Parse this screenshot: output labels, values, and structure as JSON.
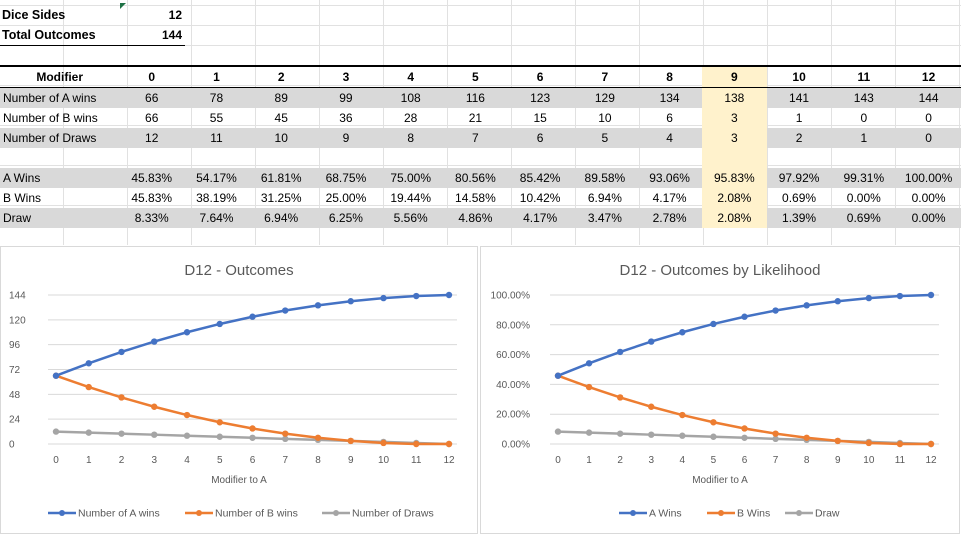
{
  "info": {
    "dice_sides_label": "Dice Sides",
    "dice_sides_value": "12",
    "total_outcomes_label": "Total Outcomes",
    "total_outcomes_value": "144"
  },
  "table": {
    "header_label": "Modifier",
    "modifiers": [
      "0",
      "1",
      "2",
      "3",
      "4",
      "5",
      "6",
      "7",
      "8",
      "9",
      "10",
      "11",
      "12"
    ],
    "highlight_col": 9,
    "rows": [
      {
        "label": "Number of A wins",
        "values": [
          "66",
          "78",
          "89",
          "99",
          "108",
          "116",
          "123",
          "129",
          "134",
          "138",
          "141",
          "143",
          "144"
        ]
      },
      {
        "label": "Number of B wins",
        "values": [
          "66",
          "55",
          "45",
          "36",
          "28",
          "21",
          "15",
          "10",
          "6",
          "3",
          "1",
          "0",
          "0"
        ]
      },
      {
        "label": "Number of Draws",
        "values": [
          "12",
          "11",
          "10",
          "9",
          "8",
          "7",
          "6",
          "5",
          "4",
          "3",
          "2",
          "1",
          "0"
        ]
      }
    ],
    "pct_rows": [
      {
        "label": "A Wins",
        "values": [
          "45.83%",
          "54.17%",
          "61.81%",
          "68.75%",
          "75.00%",
          "80.56%",
          "85.42%",
          "89.58%",
          "93.06%",
          "95.83%",
          "97.92%",
          "99.31%",
          "100.00%"
        ]
      },
      {
        "label": "B Wins",
        "values": [
          "45.83%",
          "38.19%",
          "31.25%",
          "25.00%",
          "19.44%",
          "14.58%",
          "10.42%",
          "6.94%",
          "4.17%",
          "2.08%",
          "0.69%",
          "0.00%",
          "0.00%"
        ]
      },
      {
        "label": "Draw",
        "values": [
          "8.33%",
          "7.64%",
          "6.94%",
          "6.25%",
          "5.56%",
          "4.86%",
          "4.17%",
          "3.47%",
          "2.78%",
          "2.08%",
          "1.39%",
          "0.69%",
          "0.00%"
        ]
      }
    ]
  },
  "colors": {
    "a": "#4472c4",
    "b": "#ed7d31",
    "draw": "#a5a5a5",
    "highlight": "#fff2cc",
    "shade": "#d9d9d9"
  },
  "chart_data": [
    {
      "type": "line",
      "title": "D12 - Outcomes",
      "xlabel": "Modifier to A",
      "ylabel": "",
      "x": [
        0,
        1,
        2,
        3,
        4,
        5,
        6,
        7,
        8,
        9,
        10,
        11,
        12
      ],
      "ylim": [
        0,
        144
      ],
      "yticks": [
        0,
        24,
        48,
        72,
        96,
        120,
        144
      ],
      "ytick_labels": [
        "0",
        "24",
        "48",
        "72",
        "96",
        "120",
        "144"
      ],
      "legend": "bottom",
      "grid": true,
      "series": [
        {
          "name": "Number of A wins",
          "values": [
            66,
            78,
            89,
            99,
            108,
            116,
            123,
            129,
            134,
            138,
            141,
            143,
            144
          ]
        },
        {
          "name": "Number of B wins",
          "values": [
            66,
            55,
            45,
            36,
            28,
            21,
            15,
            10,
            6,
            3,
            1,
            0,
            0
          ]
        },
        {
          "name": "Number of Draws",
          "values": [
            12,
            11,
            10,
            9,
            8,
            7,
            6,
            5,
            4,
            3,
            2,
            1,
            0
          ]
        }
      ]
    },
    {
      "type": "line",
      "title": "D12 - Outcomes by Likelihood",
      "xlabel": "Modifier to A",
      "ylabel": "",
      "x": [
        0,
        1,
        2,
        3,
        4,
        5,
        6,
        7,
        8,
        9,
        10,
        11,
        12
      ],
      "ylim": [
        0,
        100
      ],
      "yticks": [
        0,
        20,
        40,
        60,
        80,
        100
      ],
      "ytick_labels": [
        "0.00%",
        "20.00%",
        "40.00%",
        "60.00%",
        "80.00%",
        "100.00%"
      ],
      "legend": "bottom",
      "grid": true,
      "series": [
        {
          "name": "A Wins",
          "values": [
            45.83,
            54.17,
            61.81,
            68.75,
            75.0,
            80.56,
            85.42,
            89.58,
            93.06,
            95.83,
            97.92,
            99.31,
            100.0
          ]
        },
        {
          "name": "B Wins",
          "values": [
            45.83,
            38.19,
            31.25,
            25.0,
            19.44,
            14.58,
            10.42,
            6.94,
            4.17,
            2.08,
            0.69,
            0.0,
            0.0
          ]
        },
        {
          "name": "Draw",
          "values": [
            8.33,
            7.64,
            6.94,
            6.25,
            5.56,
            4.86,
            4.17,
            3.47,
            2.78,
            2.08,
            1.39,
            0.69,
            0.0
          ]
        }
      ]
    }
  ]
}
